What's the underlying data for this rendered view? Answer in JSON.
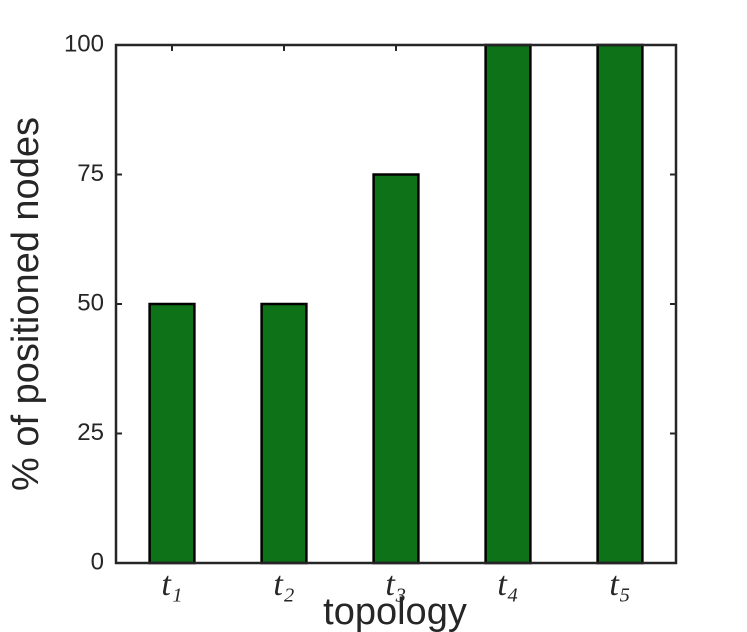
{
  "chart_data": {
    "type": "bar",
    "x_label": "topology",
    "y_label": "% of positioned nodes",
    "categories": [
      "t₁",
      "t₂",
      "t₃",
      "t₄",
      "t₅"
    ],
    "values": [
      50,
      50,
      75,
      100,
      100
    ],
    "color": "#0e7219",
    "ylim": [
      0,
      100
    ],
    "yticks": [
      0,
      25,
      50,
      75,
      100
    ],
    "grid": false
  }
}
